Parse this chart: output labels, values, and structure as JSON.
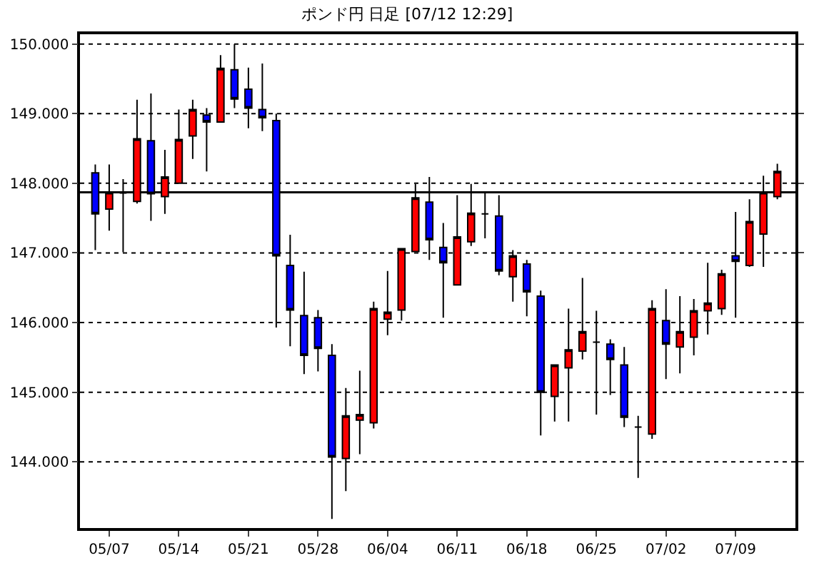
{
  "chart_data": {
    "type": "candlestick",
    "title": "ポンド円 日足 [07/12 12:29]",
    "categories": [
      null,
      "05/07",
      null,
      null,
      null,
      null,
      "05/14",
      null,
      null,
      null,
      null,
      "05/21",
      null,
      null,
      null,
      null,
      "05/28",
      null,
      null,
      null,
      null,
      "06/04",
      null,
      null,
      null,
      null,
      "06/11",
      null,
      null,
      null,
      null,
      "06/18",
      null,
      null,
      null,
      null,
      "06/25",
      null,
      null,
      null,
      null,
      "07/02",
      null,
      null,
      null,
      null,
      "07/09",
      null,
      null,
      null
    ],
    "ohlc": [
      [
        148.15,
        148.27,
        147.04,
        147.56
      ],
      [
        147.63,
        148.27,
        147.32,
        147.87
      ],
      [
        147.86,
        148.06,
        147.01,
        147.86
      ],
      [
        147.74,
        149.2,
        147.71,
        148.64
      ],
      [
        148.61,
        149.29,
        147.46,
        147.85
      ],
      [
        147.81,
        148.48,
        147.56,
        148.09
      ],
      [
        148.0,
        149.06,
        147.99,
        148.63
      ],
      [
        148.68,
        149.2,
        148.35,
        149.06
      ],
      [
        148.98,
        149.08,
        148.17,
        148.88
      ],
      [
        148.88,
        149.84,
        148.88,
        149.65
      ],
      [
        149.63,
        150.0,
        149.08,
        149.21
      ],
      [
        149.35,
        149.66,
        148.79,
        149.08
      ],
      [
        149.06,
        149.72,
        148.75,
        148.94
      ],
      [
        148.9,
        149.0,
        145.93,
        146.96
      ],
      [
        146.82,
        147.26,
        145.66,
        146.18
      ],
      [
        146.1,
        146.73,
        145.26,
        145.53
      ],
      [
        146.07,
        146.18,
        145.3,
        145.63
      ],
      [
        145.53,
        145.69,
        143.18,
        144.07
      ],
      [
        144.05,
        145.06,
        143.58,
        144.66
      ],
      [
        144.6,
        145.31,
        144.11,
        144.68
      ],
      [
        144.56,
        146.3,
        144.48,
        146.2
      ],
      [
        146.05,
        146.74,
        145.82,
        146.15
      ],
      [
        146.18,
        147.06,
        146.03,
        147.06
      ],
      [
        147.02,
        147.99,
        147.02,
        147.79
      ],
      [
        147.73,
        148.09,
        146.9,
        147.19
      ],
      [
        147.08,
        147.43,
        146.07,
        146.86
      ],
      [
        146.54,
        147.83,
        146.54,
        147.23
      ],
      [
        147.16,
        147.99,
        147.1,
        147.57
      ],
      [
        147.56,
        147.87,
        147.21,
        147.56
      ],
      [
        147.53,
        147.83,
        146.68,
        146.74
      ],
      [
        146.66,
        147.04,
        146.3,
        146.96
      ],
      [
        146.84,
        146.9,
        146.09,
        146.44
      ],
      [
        146.38,
        146.46,
        144.38,
        145.0
      ],
      [
        144.94,
        145.39,
        144.58,
        145.39
      ],
      [
        145.35,
        146.2,
        144.58,
        145.61
      ],
      [
        145.59,
        146.64,
        145.47,
        145.87
      ],
      [
        145.72,
        146.17,
        144.68,
        145.72
      ],
      [
        145.69,
        145.76,
        144.96,
        145.47
      ],
      [
        145.39,
        145.65,
        144.5,
        144.64
      ],
      [
        144.5,
        144.66,
        143.77,
        144.5
      ],
      [
        144.4,
        146.32,
        144.33,
        146.2
      ],
      [
        146.03,
        146.48,
        145.19,
        145.69
      ],
      [
        145.65,
        146.38,
        145.27,
        145.87
      ],
      [
        145.79,
        146.34,
        145.53,
        146.17
      ],
      [
        146.17,
        146.86,
        145.83,
        146.28
      ],
      [
        146.2,
        146.76,
        146.11,
        146.7
      ],
      [
        146.96,
        147.59,
        146.07,
        146.88
      ],
      [
        146.82,
        147.77,
        146.8,
        147.45
      ],
      [
        147.27,
        148.11,
        146.8,
        147.87
      ],
      [
        147.81,
        148.28,
        147.77,
        148.17
      ]
    ],
    "colors": [
      "#0000ff",
      "#ff0000",
      "#000000",
      "#ff0000",
      "#0000ff",
      "#ff0000",
      "#ff0000",
      "#ff0000",
      "#0000ff",
      "#ff0000",
      "#0000ff",
      "#0000ff",
      "#0000ff",
      "#0000ff",
      "#0000ff",
      "#0000ff",
      "#0000ff",
      "#0000ff",
      "#ff0000",
      "#ff0000",
      "#ff0000",
      "#ff0000",
      "#ff0000",
      "#ff0000",
      "#0000ff",
      "#0000ff",
      "#ff0000",
      "#ff0000",
      "#000000",
      "#0000ff",
      "#ff0000",
      "#0000ff",
      "#0000ff",
      "#ff0000",
      "#ff0000",
      "#ff0000",
      "#000000",
      "#0000ff",
      "#0000ff",
      "#000000",
      "#ff0000",
      "#0000ff",
      "#ff0000",
      "#ff0000",
      "#ff0000",
      "#ff0000",
      "#0000ff",
      "#ff0000",
      "#ff0000",
      "#ff0000"
    ],
    "ylim": [
      143.05,
      150.14
    ],
    "yticks": [
      {
        "value": 144,
        "label": "144.000"
      },
      {
        "value": 145,
        "label": "145.000"
      },
      {
        "value": 146,
        "label": "146.000"
      },
      {
        "value": 147,
        "label": "147.000"
      },
      {
        "value": 148,
        "label": "148.000"
      },
      {
        "value": 149,
        "label": "149.000"
      },
      {
        "value": 150,
        "label": "150.000"
      }
    ],
    "grid": "y",
    "ref_lines": [
      {
        "axis": "y",
        "value": 147.87,
        "color": "#000000",
        "line_style": "solid"
      }
    ]
  }
}
